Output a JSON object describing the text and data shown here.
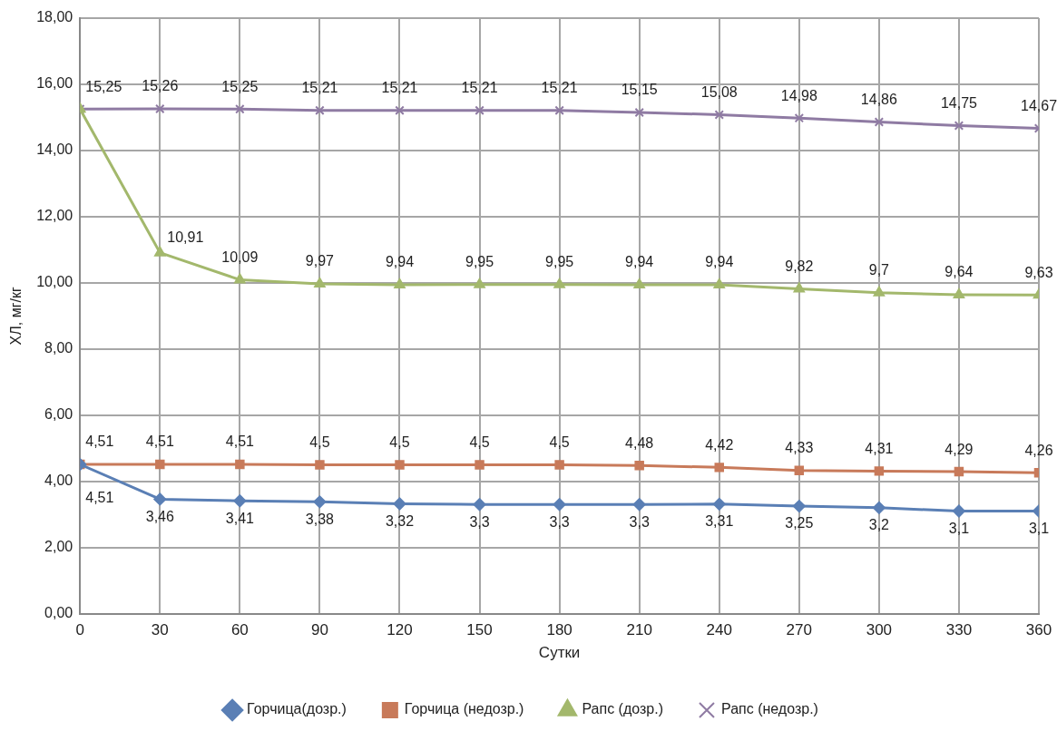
{
  "chart_data": {
    "type": "line",
    "xlabel": "Сутки",
    "ylabel": "ХЛ, мг/кг",
    "x": [
      0,
      30,
      60,
      90,
      120,
      150,
      180,
      210,
      240,
      270,
      300,
      330,
      360
    ],
    "xlim": [
      0,
      360
    ],
    "xticks": [
      0,
      30,
      60,
      90,
      120,
      150,
      180,
      210,
      240,
      270,
      300,
      330,
      360
    ],
    "ylim": [
      0,
      18
    ],
    "yticks": [
      {
        "value": 0,
        "label": "0,00"
      },
      {
        "value": 2,
        "label": "2,00"
      },
      {
        "value": 4,
        "label": "4,00"
      },
      {
        "value": 6,
        "label": "6,00"
      },
      {
        "value": 8,
        "label": "8,00"
      },
      {
        "value": 10,
        "label": "10,00"
      },
      {
        "value": 12,
        "label": "12,00"
      },
      {
        "value": 14,
        "label": "14,00"
      },
      {
        "value": 16,
        "label": "16,00"
      },
      {
        "value": 18,
        "label": "18,00"
      }
    ],
    "grid": true,
    "legend": "bottom",
    "line_style": "solid",
    "series": [
      {
        "name": "Горчица(дозр.)",
        "color": "#5a7fb5",
        "marker": "diamond",
        "values": [
          4.51,
          3.46,
          3.41,
          3.38,
          3.32,
          3.3,
          3.3,
          3.3,
          3.31,
          3.25,
          3.2,
          3.1,
          3.1
        ],
        "value_labels": [
          "4,51",
          "3,46",
          "3,41",
          "3,38",
          "3,32",
          "3,3",
          "3,3",
          "3,3",
          "3,31",
          "3,25",
          "3,2",
          "3,1",
          "3,1"
        ]
      },
      {
        "name": "Горчица (недозр.)",
        "color": "#c87a5a",
        "marker": "square",
        "values": [
          4.51,
          4.51,
          4.51,
          4.5,
          4.5,
          4.5,
          4.5,
          4.48,
          4.42,
          4.33,
          4.31,
          4.29,
          4.26
        ],
        "value_labels": [
          "4,51",
          "4,51",
          "4,51",
          "4,5",
          "4,5",
          "4,5",
          "4,5",
          "4,48",
          "4,42",
          "4,33",
          "4,31",
          "4,29",
          "4,26"
        ]
      },
      {
        "name": "Рапс (дозр.)",
        "color": "#a3b86c",
        "marker": "triangle",
        "values": [
          15.25,
          10.91,
          10.09,
          9.97,
          9.94,
          9.95,
          9.95,
          9.94,
          9.94,
          9.82,
          9.7,
          9.64,
          9.63
        ],
        "value_labels": [
          null,
          "10,91",
          "10,09",
          "9,97",
          "9,94",
          "9,95",
          "9,95",
          "9,94",
          "9,94",
          "9,82",
          "9,7",
          "9,64",
          "9,63"
        ]
      },
      {
        "name": "Рапс (недозр.)",
        "color": "#8f7ba3",
        "marker": "cross",
        "values": [
          15.25,
          15.26,
          15.25,
          15.21,
          15.21,
          15.21,
          15.21,
          15.15,
          15.08,
          14.98,
          14.86,
          14.75,
          14.67
        ],
        "value_labels": [
          "15,25",
          "15,26",
          "15,25",
          "15,21",
          "15,21",
          "15,21",
          "15,21",
          "15,15",
          "15,08",
          "14,98",
          "14,86",
          "14,75",
          "14,67"
        ]
      }
    ]
  }
}
